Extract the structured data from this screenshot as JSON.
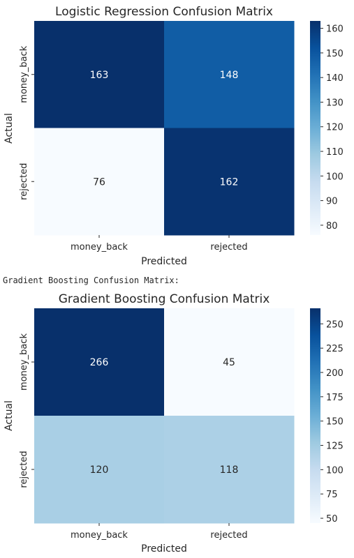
{
  "between_text": "Gradient Boosting Confusion Matrix:",
  "chart_data": [
    {
      "type": "heatmap",
      "title": "Logistic Regression Confusion Matrix",
      "xlabel": "Predicted",
      "ylabel": "Actual",
      "x_categories": [
        "money_back",
        "rejected"
      ],
      "y_categories": [
        "money_back",
        "rejected"
      ],
      "values": [
        [
          163,
          148
        ],
        [
          76,
          162
        ]
      ],
      "colormap": "Blues",
      "vmin": 76,
      "vmax": 163,
      "colorbar_ticks": [
        80,
        90,
        100,
        110,
        120,
        130,
        140,
        150,
        160
      ]
    },
    {
      "type": "heatmap",
      "title": "Gradient Boosting Confusion Matrix",
      "xlabel": "Predicted",
      "ylabel": "Actual",
      "x_categories": [
        "money_back",
        "rejected"
      ],
      "y_categories": [
        "money_back",
        "rejected"
      ],
      "values": [
        [
          266,
          45
        ],
        [
          120,
          118
        ]
      ],
      "colormap": "Blues",
      "vmin": 45,
      "vmax": 266,
      "colorbar_ticks": [
        50,
        75,
        100,
        125,
        150,
        175,
        200,
        225,
        250
      ]
    }
  ]
}
